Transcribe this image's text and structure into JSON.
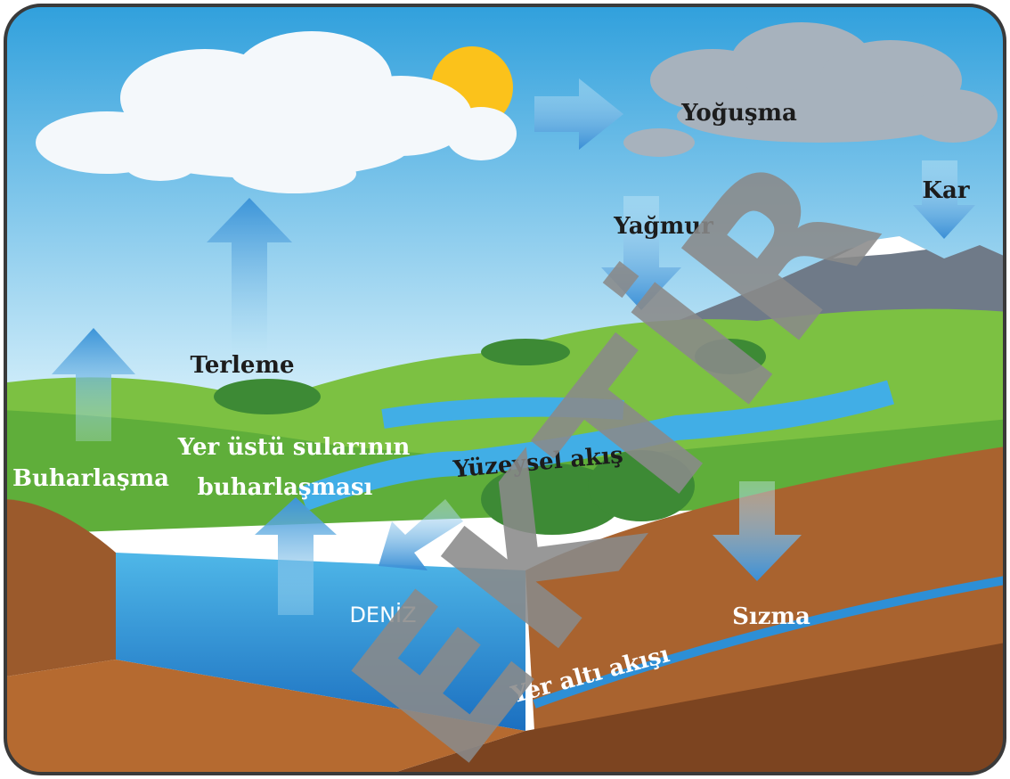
{
  "diagram": {
    "labels": {
      "condensation": "Yoğuşma",
      "snow": "Kar",
      "rain": "Yağmur",
      "transpiration": "Terleme",
      "evaporation": "Buharlaşma",
      "surface_evaporation": [
        "Yer üstü sularının",
        "buharlaşması"
      ],
      "runoff": "Yüzeysel akış",
      "sea": "DENİZ",
      "infiltration": "Sızma",
      "groundwater": "Yer altı akışı"
    },
    "watermark": "EKTİR"
  }
}
